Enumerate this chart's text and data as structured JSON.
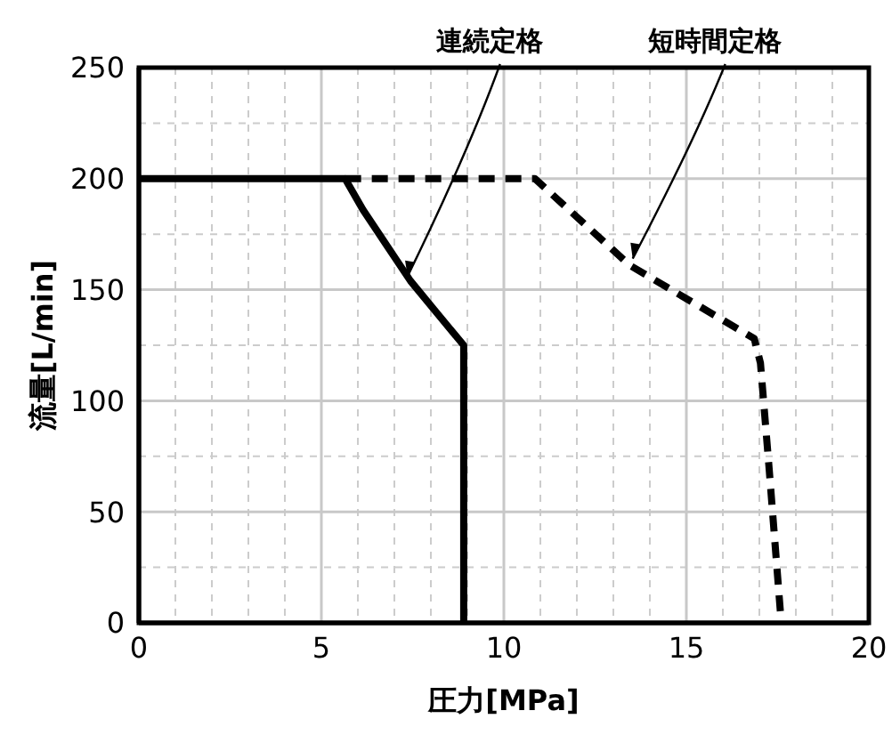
{
  "chart_data": {
    "type": "line",
    "xlabel": "圧力[MPa]",
    "ylabel": "流量[L/min]",
    "xlim": [
      0,
      20
    ],
    "ylim": [
      0,
      250
    ],
    "xticks": [
      0,
      {
        "value": 1,
        "label": null
      },
      {
        "value": 2,
        "label": null
      },
      {
        "value": 3,
        "label": null
      },
      {
        "value": 4,
        "label": null
      },
      5,
      {
        "value": 6,
        "label": null
      },
      {
        "value": 7,
        "label": null
      },
      {
        "value": 8,
        "label": null
      },
      {
        "value": 9,
        "label": null
      },
      10,
      {
        "value": 11,
        "label": null
      },
      {
        "value": 12,
        "label": null
      },
      {
        "value": 13,
        "label": null
      },
      {
        "value": 14,
        "label": null
      },
      15,
      {
        "value": 16,
        "label": null
      },
      {
        "value": 17,
        "label": null
      },
      {
        "value": 18,
        "label": null
      },
      {
        "value": 19,
        "label": null
      },
      20
    ],
    "yticks": [
      0,
      {
        "value": 25,
        "label": null
      },
      50,
      {
        "value": 75,
        "label": null
      },
      100,
      {
        "value": 125,
        "label": null
      },
      150,
      {
        "value": 175,
        "label": null
      },
      200,
      {
        "value": 225,
        "label": null
      },
      250
    ],
    "grid": true,
    "series": [
      {
        "color": "#000000",
        "line_style": "solid",
        "x": [
          0,
          5.65,
          6.14,
          6.79,
          7.44,
          8.09,
          8.9,
          8.9
        ],
        "values": [
          200,
          200,
          186,
          170,
          154,
          141,
          125,
          0
        ]
      },
      {
        "color": "#000000",
        "line_style": "dashed",
        "x": [
          5.65,
          10.85,
          13.45,
          16.86,
          17.03,
          17.27,
          17.6
        ],
        "values": [
          200,
          200,
          161,
          128,
          117,
          69,
          0
        ]
      }
    ],
    "annotations": [
      {
        "text": "連続定格",
        "x": 7.36,
        "y": 156
      },
      {
        "text": "短時間定格",
        "x": 13.53,
        "y": 164
      }
    ]
  }
}
